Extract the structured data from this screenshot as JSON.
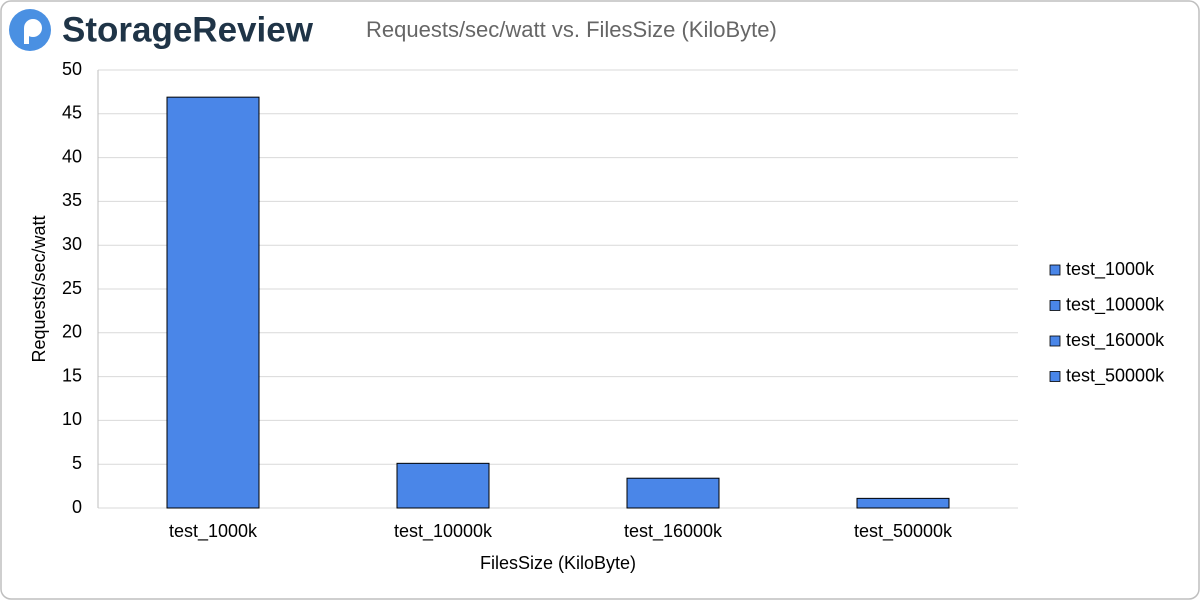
{
  "brand": "StorageReview",
  "chart_data": {
    "type": "bar",
    "title": "Requests/sec/watt vs. FilesSize (KiloByte)",
    "x_label": "FilesSize (KiloByte)",
    "y_label": "Requests/sec/watt",
    "categories": [
      "test_1000k",
      "test_10000k",
      "test_16000k",
      "test_50000k"
    ],
    "values": [
      46.9,
      5.1,
      3.4,
      1.1
    ],
    "color": "#4a86e8",
    "ylim": [
      0,
      50
    ],
    "yticks": [
      0,
      5,
      10,
      15,
      20,
      25,
      30,
      35,
      40,
      45,
      50
    ],
    "grid": true,
    "legend": "right"
  }
}
